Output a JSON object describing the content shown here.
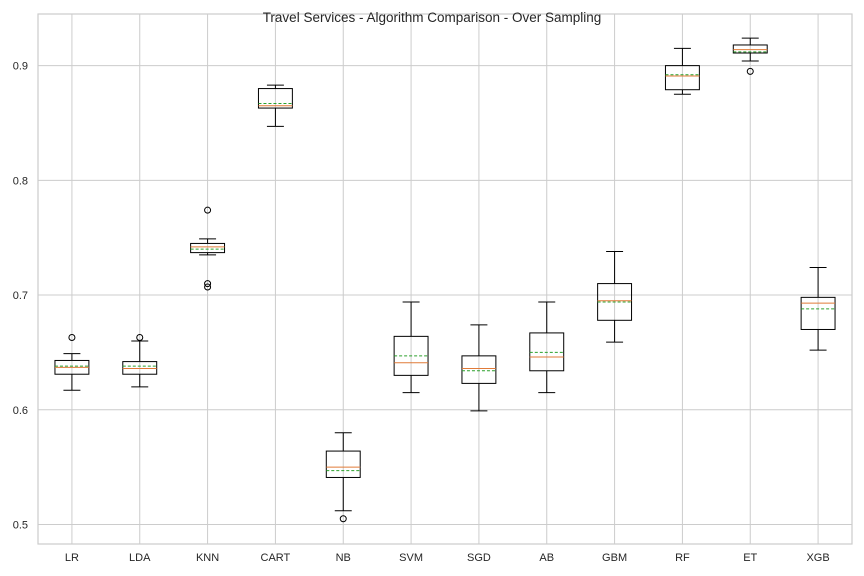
{
  "chart_data": {
    "type": "boxplot",
    "title": "Travel Services - Algorithm Comparison - Over Sampling",
    "xlabel": "",
    "ylabel": "",
    "ylim": [
      0.483,
      0.945
    ],
    "yticks": [
      0.5,
      0.6,
      0.7,
      0.8,
      0.9
    ],
    "ytick_labels": [
      "0.5",
      "0.6",
      "0.7",
      "0.8",
      "0.9"
    ],
    "grid": true,
    "colors": {
      "box": "#000000",
      "median": "#e07b39",
      "mean": "#2ca02c",
      "grid": "#cccccc",
      "frame": "#cccccc"
    },
    "series": [
      {
        "name": "LR",
        "whislo": 0.617,
        "q1": 0.631,
        "med": 0.637,
        "mean": 0.638,
        "q3": 0.643,
        "whishi": 0.649,
        "fliers": [
          0.663
        ]
      },
      {
        "name": "LDA",
        "whislo": 0.62,
        "q1": 0.631,
        "med": 0.636,
        "mean": 0.638,
        "q3": 0.642,
        "whishi": 0.66,
        "fliers": [
          0.663
        ]
      },
      {
        "name": "KNN",
        "whislo": 0.735,
        "q1": 0.737,
        "med": 0.742,
        "mean": 0.74,
        "q3": 0.745,
        "whishi": 0.749,
        "fliers": [
          0.774,
          0.71,
          0.707
        ]
      },
      {
        "name": "CART",
        "whislo": 0.847,
        "q1": 0.863,
        "med": 0.865,
        "mean": 0.867,
        "q3": 0.88,
        "whishi": 0.883,
        "fliers": []
      },
      {
        "name": "NB",
        "whislo": 0.512,
        "q1": 0.541,
        "med": 0.55,
        "mean": 0.547,
        "q3": 0.564,
        "whishi": 0.58,
        "fliers": [
          0.505
        ]
      },
      {
        "name": "SVM",
        "whislo": 0.615,
        "q1": 0.63,
        "med": 0.641,
        "mean": 0.647,
        "q3": 0.664,
        "whishi": 0.694,
        "fliers": []
      },
      {
        "name": "SGD",
        "whislo": 0.599,
        "q1": 0.623,
        "med": 0.636,
        "mean": 0.634,
        "q3": 0.647,
        "whishi": 0.674,
        "fliers": []
      },
      {
        "name": "AB",
        "whislo": 0.615,
        "q1": 0.634,
        "med": 0.646,
        "mean": 0.65,
        "q3": 0.667,
        "whishi": 0.694,
        "fliers": []
      },
      {
        "name": "GBM",
        "whislo": 0.659,
        "q1": 0.678,
        "med": 0.695,
        "mean": 0.694,
        "q3": 0.71,
        "whishi": 0.738,
        "fliers": []
      },
      {
        "name": "RF",
        "whislo": 0.875,
        "q1": 0.879,
        "med": 0.891,
        "mean": 0.892,
        "q3": 0.9,
        "whishi": 0.915,
        "fliers": []
      },
      {
        "name": "ET",
        "whislo": 0.904,
        "q1": 0.911,
        "med": 0.914,
        "mean": 0.912,
        "q3": 0.918,
        "whishi": 0.924,
        "fliers": [
          0.895
        ]
      },
      {
        "name": "XGB",
        "whislo": 0.652,
        "q1": 0.67,
        "med": 0.693,
        "mean": 0.688,
        "q3": 0.698,
        "whishi": 0.724,
        "fliers": []
      }
    ]
  }
}
